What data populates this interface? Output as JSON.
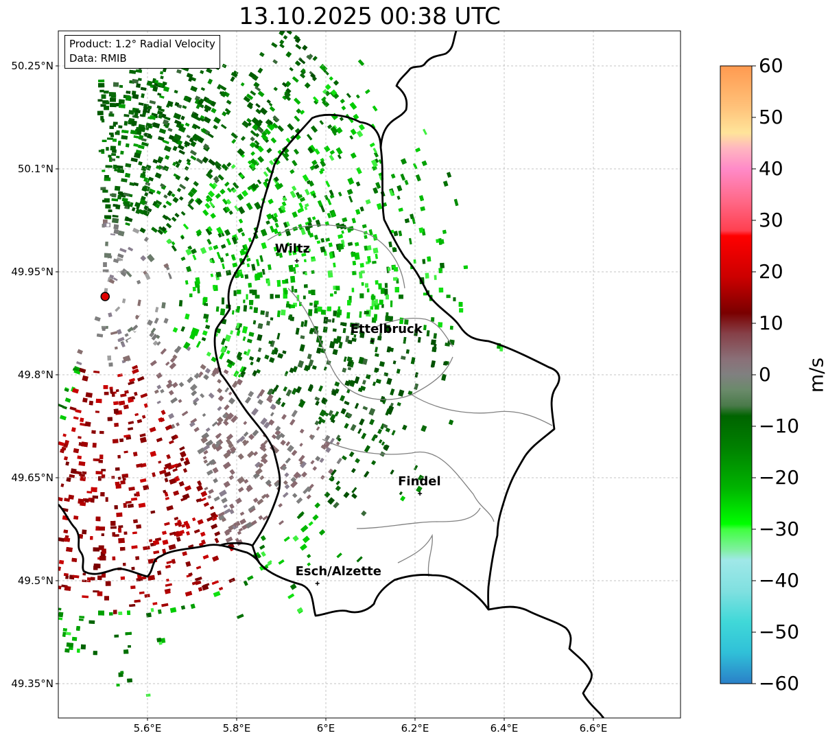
{
  "title": "13.10.2025 00:38 UTC",
  "info": {
    "product": "Product: 1.2° Radial Velocity",
    "source": "Data: RMIB"
  },
  "lat_ticks": [
    "50.25°N",
    "50.1°N",
    "49.95°N",
    "49.8°N",
    "49.65°N",
    "49.5°N",
    "49.35°N"
  ],
  "lon_ticks": [
    "5.6°E",
    "5.8°E",
    "6°E",
    "6.2°E",
    "6.4°E",
    "6.6°E"
  ],
  "cities": [
    {
      "name": "Wiltz",
      "lon": 5.935,
      "lat": 49.966
    },
    {
      "name": "Ettelbruck",
      "lon": 6.104,
      "lat": 49.849
    },
    {
      "name": "Findel",
      "lon": 6.211,
      "lat": 49.627
    },
    {
      "name": "Esch/Alzette",
      "lon": 5.981,
      "lat": 49.496
    }
  ],
  "radar_site": {
    "lon": 5.505,
    "lat": 49.914,
    "color": "#e00000"
  },
  "colorbar": {
    "unit": "m/s",
    "min": -60,
    "max": 60,
    "tick_labels": [
      "60",
      "50",
      "40",
      "30",
      "20",
      "10",
      "0",
      "−10",
      "−20",
      "−30",
      "−40",
      "−50",
      "−60"
    ],
    "stops": [
      {
        "v": 60,
        "c": "#ff9a50"
      },
      {
        "v": 52,
        "c": "#ffc27a"
      },
      {
        "v": 47,
        "c": "#ffe49a"
      },
      {
        "v": 44,
        "c": "#ffb6c0"
      },
      {
        "v": 40,
        "c": "#ff8ac8"
      },
      {
        "v": 34,
        "c": "#ff6a8a"
      },
      {
        "v": 28,
        "c": "#ff4050"
      },
      {
        "v": 27,
        "c": "#ff0000"
      },
      {
        "v": 19,
        "c": "#cc0000"
      },
      {
        "v": 12,
        "c": "#7a0000"
      },
      {
        "v": 8,
        "c": "#864048"
      },
      {
        "v": 3,
        "c": "#8a7078"
      },
      {
        "v": 0,
        "c": "#808080"
      },
      {
        "v": -3,
        "c": "#6a8a6a"
      },
      {
        "v": -6,
        "c": "#4a7a4a"
      },
      {
        "v": -8,
        "c": "#006400"
      },
      {
        "v": -14,
        "c": "#008000"
      },
      {
        "v": -22,
        "c": "#00b400"
      },
      {
        "v": -29,
        "c": "#00ff00"
      },
      {
        "v": -30,
        "c": "#40ff40"
      },
      {
        "v": -34,
        "c": "#80f0a0"
      },
      {
        "v": -36,
        "c": "#a0e8e8"
      },
      {
        "v": -42,
        "c": "#80e0e0"
      },
      {
        "v": -48,
        "c": "#40d8d8"
      },
      {
        "v": -54,
        "c": "#30c0d8"
      },
      {
        "v": -60,
        "c": "#2a80c8"
      }
    ]
  }
}
